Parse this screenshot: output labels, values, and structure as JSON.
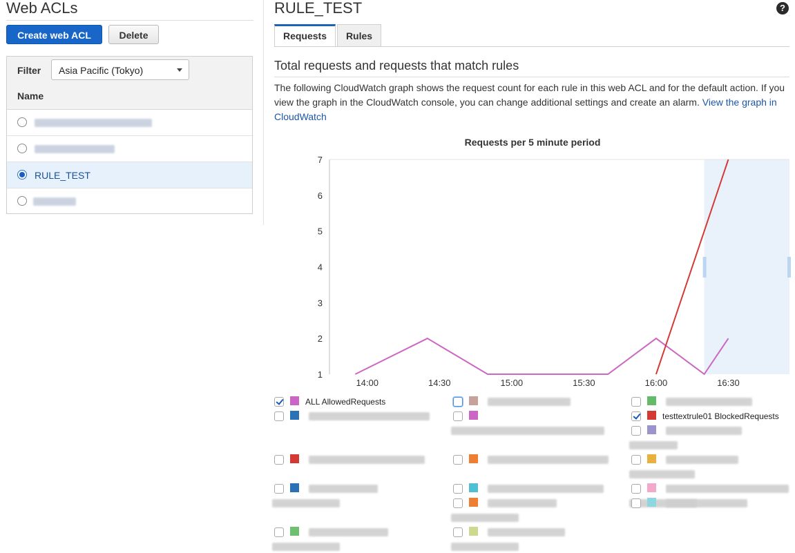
{
  "left": {
    "title": "Web ACLs",
    "create_label": "Create web ACL",
    "delete_label": "Delete",
    "filter_label": "Filter",
    "region": "Asia Pacific (Tokyo)",
    "name_header": "Name",
    "acls": [
      {
        "name": "",
        "selected": false
      },
      {
        "name": "",
        "selected": false
      },
      {
        "name": "RULE_TEST",
        "selected": true
      },
      {
        "name": "",
        "selected": false
      }
    ]
  },
  "right": {
    "title": "RULE_TEST",
    "help_icon": "help-circle-icon",
    "tabs": [
      {
        "label": "Requests",
        "active": true
      },
      {
        "label": "Rules",
        "active": false
      }
    ],
    "section_title": "Total requests and requests that match rules",
    "description": "The following CloudWatch graph shows the request count for each rule in this web ACL and for the default action. If you view the graph in the CloudWatch console, you can change additional settings and create an alarm.",
    "link_text": "View the graph in CloudWatch"
  },
  "chart_data": {
    "type": "line",
    "title": "Requests per 5 minute period",
    "x_ticks": [
      "14:00",
      "14:30",
      "15:00",
      "15:30",
      "16:00",
      "16:30"
    ],
    "ylim": [
      1,
      7
    ],
    "y_ticks": [
      1,
      2,
      3,
      4,
      5,
      6,
      7
    ],
    "grid": false,
    "series": [
      {
        "name": "ALL AllowedRequests",
        "color": "#cc66c4",
        "points": [
          [
            "13:55",
            1
          ],
          [
            "14:25",
            2
          ],
          [
            "14:50",
            1
          ],
          [
            "15:40",
            1
          ],
          [
            "16:00",
            2
          ],
          [
            "16:20",
            1
          ],
          [
            "16:30",
            2
          ]
        ]
      },
      {
        "name": "testtextrule01 BlockedRequests",
        "color": "#d43a33",
        "points": [
          [
            "16:00",
            1
          ],
          [
            "16:30",
            7
          ]
        ]
      }
    ]
  },
  "legend": [
    {
      "label": "ALL AllowedRequests",
      "color": "#cc66c4",
      "checked": true
    },
    {
      "label": "",
      "color": "#c7a29b",
      "checked": false
    },
    {
      "label": "",
      "color": "#66bb6a",
      "checked": false
    },
    {
      "label": "",
      "color": "#2a72b5",
      "checked": false
    },
    {
      "label": "",
      "color": "#cc66c4",
      "checked": false
    },
    {
      "label": "testtextrule01 BlockedRequests",
      "color": "#d43a33",
      "checked": true
    },
    {
      "label": "",
      "color": "#9a96cc",
      "checked": false
    },
    {
      "label": "",
      "color": "#d43a33",
      "checked": false
    },
    {
      "label": "",
      "color": "#ef7d32",
      "checked": false
    },
    {
      "label": "",
      "color": "#e8b13f",
      "checked": false
    },
    {
      "label": "",
      "color": "#2a72b5",
      "checked": false
    },
    {
      "label": "",
      "color": "#4fbfd3",
      "checked": false
    },
    {
      "label": "",
      "color": "#f2a9cc",
      "checked": false
    },
    {
      "label": "",
      "color": "#ef7d32",
      "checked": false
    },
    {
      "label": "",
      "color": "#8fd6e0",
      "checked": false
    },
    {
      "label": "",
      "color": "#6cc070",
      "checked": false
    },
    {
      "label": "",
      "color": "#cdd98e",
      "checked": false
    }
  ]
}
